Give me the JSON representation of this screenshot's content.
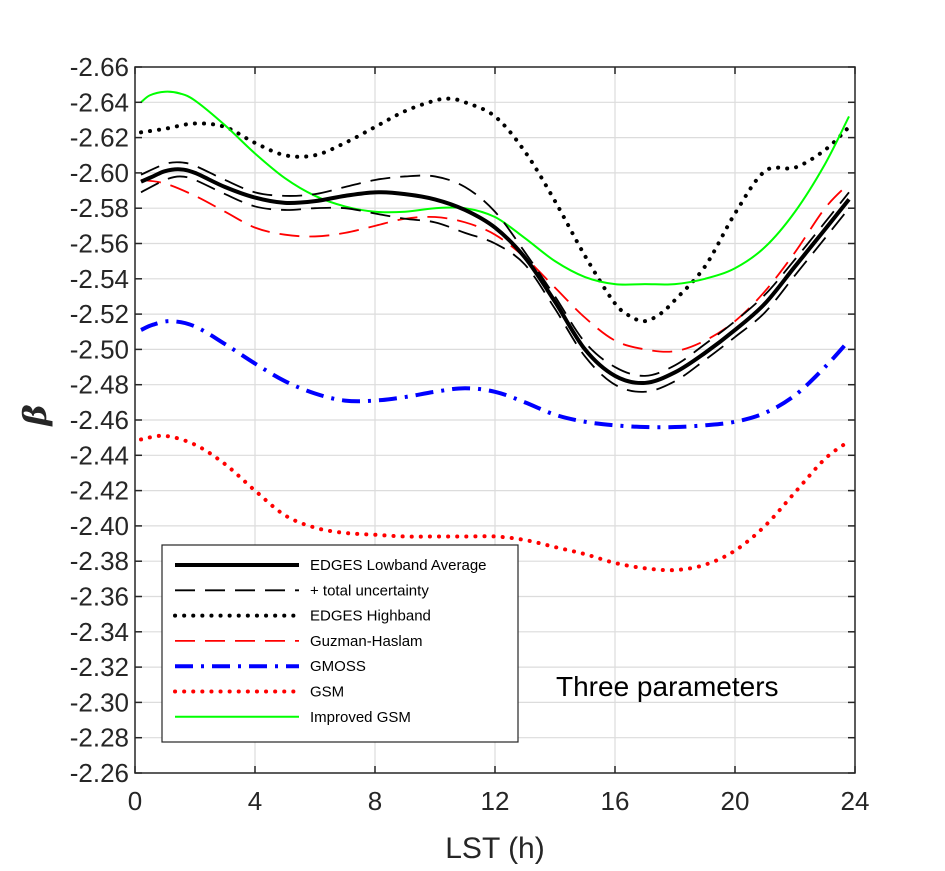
{
  "chart_data": {
    "type": "line",
    "xlabel": "LST (h)",
    "ylabel": "β",
    "xlim": [
      0,
      24
    ],
    "ylim": [
      -2.66,
      -2.26
    ],
    "y_reversed": true,
    "grid": true,
    "legend_position": "bottom-left",
    "xticks": [
      0,
      4,
      8,
      12,
      16,
      20,
      24
    ],
    "xtick_labels": [
      "0",
      "4",
      "8",
      "12",
      "16",
      "20",
      "24"
    ],
    "yticks": [
      -2.66,
      -2.64,
      -2.62,
      -2.6,
      -2.58,
      -2.56,
      -2.54,
      -2.52,
      -2.5,
      -2.48,
      -2.46,
      -2.44,
      -2.42,
      -2.4,
      -2.38,
      -2.36,
      -2.34,
      -2.32,
      -2.3,
      -2.28,
      -2.26
    ],
    "ytick_labels": [
      "-2.66",
      "-2.64",
      "-2.62",
      "-2.60",
      "-2.58",
      "-2.56",
      "-2.54",
      "-2.52",
      "-2.50",
      "-2.48",
      "-2.46",
      "-2.44",
      "-2.42",
      "-2.40",
      "-2.38",
      "-2.36",
      "-2.34",
      "-2.32",
      "-2.30",
      "-2.28",
      "-2.26"
    ],
    "annotation": "Three parameters",
    "series": [
      {
        "name": "EDGES Lowband Average",
        "color": "#000000",
        "style": "solid-thick",
        "points": [
          [
            0.2,
            -2.595
          ],
          [
            0.6,
            -2.598
          ],
          [
            1,
            -2.601
          ],
          [
            1.5,
            -2.602
          ],
          [
            2,
            -2.6
          ],
          [
            3,
            -2.592
          ],
          [
            4,
            -2.586
          ],
          [
            5,
            -2.583
          ],
          [
            6,
            -2.584
          ],
          [
            7,
            -2.587
          ],
          [
            8,
            -2.589
          ],
          [
            9,
            -2.588
          ],
          [
            10,
            -2.585
          ],
          [
            11,
            -2.579
          ],
          [
            12,
            -2.569
          ],
          [
            13,
            -2.552
          ],
          [
            14,
            -2.527
          ],
          [
            15,
            -2.5
          ],
          [
            16,
            -2.485
          ],
          [
            17,
            -2.481
          ],
          [
            18,
            -2.487
          ],
          [
            19,
            -2.498
          ],
          [
            20,
            -2.511
          ],
          [
            21,
            -2.526
          ],
          [
            22,
            -2.547
          ],
          [
            23,
            -2.568
          ],
          [
            23.8,
            -2.585
          ]
        ]
      },
      {
        "name": "+ total uncertainty",
        "color": "#000000",
        "style": "long-dash",
        "points": [
          [
            0.2,
            -2.599
          ],
          [
            1,
            -2.605
          ],
          [
            1.5,
            -2.606
          ],
          [
            2,
            -2.604
          ],
          [
            3,
            -2.596
          ],
          [
            4,
            -2.589
          ],
          [
            5,
            -2.587
          ],
          [
            6,
            -2.588
          ],
          [
            7,
            -2.592
          ],
          [
            8,
            -2.596
          ],
          [
            9,
            -2.598
          ],
          [
            10,
            -2.598
          ],
          [
            11,
            -2.592
          ],
          [
            12,
            -2.578
          ],
          [
            13,
            -2.555
          ],
          [
            14,
            -2.53
          ],
          [
            15,
            -2.504
          ],
          [
            16,
            -2.49
          ],
          [
            17,
            -2.485
          ],
          [
            18,
            -2.491
          ],
          [
            19,
            -2.503
          ],
          [
            20,
            -2.516
          ],
          [
            21,
            -2.531
          ],
          [
            22,
            -2.551
          ],
          [
            23,
            -2.572
          ],
          [
            23.8,
            -2.589
          ]
        ]
      },
      {
        "name": "",
        "color": "#000000",
        "style": "long-dash",
        "points": [
          [
            0.2,
            -2.589
          ],
          [
            1,
            -2.596
          ],
          [
            1.5,
            -2.598
          ],
          [
            2,
            -2.596
          ],
          [
            3,
            -2.588
          ],
          [
            4,
            -2.581
          ],
          [
            5,
            -2.579
          ],
          [
            6,
            -2.58
          ],
          [
            7,
            -2.58
          ],
          [
            8,
            -2.577
          ],
          [
            9,
            -2.574
          ],
          [
            10,
            -2.572
          ],
          [
            11,
            -2.566
          ],
          [
            12,
            -2.56
          ],
          [
            13,
            -2.548
          ],
          [
            14,
            -2.523
          ],
          [
            15,
            -2.496
          ],
          [
            16,
            -2.48
          ],
          [
            17,
            -2.476
          ],
          [
            18,
            -2.482
          ],
          [
            19,
            -2.494
          ],
          [
            20,
            -2.507
          ],
          [
            21,
            -2.521
          ],
          [
            22,
            -2.542
          ],
          [
            23,
            -2.563
          ],
          [
            23.8,
            -2.58
          ]
        ]
      },
      {
        "name": "EDGES Highband",
        "color": "#000000",
        "style": "dotted",
        "points": [
          [
            0.2,
            -2.623
          ],
          [
            1,
            -2.625
          ],
          [
            2,
            -2.628
          ],
          [
            3,
            -2.626
          ],
          [
            4,
            -2.617
          ],
          [
            5,
            -2.61
          ],
          [
            6,
            -2.61
          ],
          [
            7,
            -2.617
          ],
          [
            8,
            -2.626
          ],
          [
            9,
            -2.635
          ],
          [
            10,
            -2.641
          ],
          [
            10.5,
            -2.642
          ],
          [
            11,
            -2.64
          ],
          [
            12,
            -2.632
          ],
          [
            13,
            -2.612
          ],
          [
            14,
            -2.584
          ],
          [
            15,
            -2.553
          ],
          [
            16,
            -2.526
          ],
          [
            16.6,
            -2.518
          ],
          [
            17,
            -2.516
          ],
          [
            17.5,
            -2.52
          ],
          [
            18,
            -2.528
          ],
          [
            19,
            -2.547
          ],
          [
            20,
            -2.577
          ],
          [
            21,
            -2.601
          ],
          [
            22,
            -2.603
          ],
          [
            23,
            -2.613
          ],
          [
            23.8,
            -2.626
          ]
        ]
      },
      {
        "name": "Guzman-Haslam",
        "color": "#ff0000",
        "style": "long-dash",
        "points": [
          [
            0.2,
            -2.596
          ],
          [
            1,
            -2.594
          ],
          [
            2,
            -2.587
          ],
          [
            3,
            -2.578
          ],
          [
            4,
            -2.569
          ],
          [
            5,
            -2.565
          ],
          [
            6,
            -2.564
          ],
          [
            7,
            -2.566
          ],
          [
            8,
            -2.57
          ],
          [
            9,
            -2.574
          ],
          [
            10,
            -2.575
          ],
          [
            11,
            -2.572
          ],
          [
            12,
            -2.565
          ],
          [
            13,
            -2.552
          ],
          [
            14,
            -2.535
          ],
          [
            15,
            -2.518
          ],
          [
            16,
            -2.505
          ],
          [
            17,
            -2.5
          ],
          [
            18,
            -2.499
          ],
          [
            19,
            -2.505
          ],
          [
            20,
            -2.516
          ],
          [
            21,
            -2.533
          ],
          [
            22,
            -2.555
          ],
          [
            23,
            -2.58
          ],
          [
            23.8,
            -2.594
          ]
        ]
      },
      {
        "name": "GMOSS",
        "color": "#0000ff",
        "style": "dash-dot",
        "points": [
          [
            0.2,
            -2.511
          ],
          [
            0.6,
            -2.514
          ],
          [
            1.2,
            -2.516
          ],
          [
            2,
            -2.513
          ],
          [
            3,
            -2.503
          ],
          [
            4,
            -2.492
          ],
          [
            5,
            -2.482
          ],
          [
            6,
            -2.475
          ],
          [
            7,
            -2.471
          ],
          [
            8,
            -2.471
          ],
          [
            9,
            -2.473
          ],
          [
            10,
            -2.476
          ],
          [
            11,
            -2.478
          ],
          [
            12,
            -2.476
          ],
          [
            13,
            -2.47
          ],
          [
            14,
            -2.463
          ],
          [
            15,
            -2.459
          ],
          [
            16,
            -2.457
          ],
          [
            17,
            -2.456
          ],
          [
            18,
            -2.456
          ],
          [
            19,
            -2.457
          ],
          [
            20,
            -2.459
          ],
          [
            21,
            -2.464
          ],
          [
            22,
            -2.474
          ],
          [
            23,
            -2.49
          ],
          [
            23.8,
            -2.505
          ]
        ]
      },
      {
        "name": "GSM",
        "color": "#ff0000",
        "style": "dotted",
        "points": [
          [
            0.2,
            -2.449
          ],
          [
            1,
            -2.451
          ],
          [
            2,
            -2.446
          ],
          [
            3,
            -2.435
          ],
          [
            4,
            -2.42
          ],
          [
            5,
            -2.406
          ],
          [
            6,
            -2.399
          ],
          [
            7,
            -2.396
          ],
          [
            8,
            -2.395
          ],
          [
            9,
            -2.394
          ],
          [
            10,
            -2.394
          ],
          [
            11,
            -2.394
          ],
          [
            12,
            -2.394
          ],
          [
            13,
            -2.392
          ],
          [
            14,
            -2.388
          ],
          [
            15,
            -2.384
          ],
          [
            16,
            -2.379
          ],
          [
            17,
            -2.376
          ],
          [
            18,
            -2.375
          ],
          [
            19,
            -2.378
          ],
          [
            20,
            -2.386
          ],
          [
            21,
            -2.4
          ],
          [
            22,
            -2.419
          ],
          [
            23,
            -2.438
          ],
          [
            23.8,
            -2.448
          ]
        ]
      },
      {
        "name": "Improved GSM",
        "color": "#00ff00",
        "style": "solid",
        "points": [
          [
            0.2,
            -2.64
          ],
          [
            0.5,
            -2.644
          ],
          [
            1,
            -2.646
          ],
          [
            1.5,
            -2.645
          ],
          [
            2,
            -2.641
          ],
          [
            3,
            -2.627
          ],
          [
            4,
            -2.611
          ],
          [
            5,
            -2.597
          ],
          [
            6,
            -2.587
          ],
          [
            7,
            -2.581
          ],
          [
            8,
            -2.578
          ],
          [
            9,
            -2.578
          ],
          [
            10,
            -2.58
          ],
          [
            11,
            -2.58
          ],
          [
            12,
            -2.575
          ],
          [
            13,
            -2.563
          ],
          [
            14,
            -2.55
          ],
          [
            15,
            -2.541
          ],
          [
            16,
            -2.537
          ],
          [
            17,
            -2.537
          ],
          [
            18,
            -2.537
          ],
          [
            19,
            -2.54
          ],
          [
            20,
            -2.546
          ],
          [
            21,
            -2.558
          ],
          [
            22,
            -2.578
          ],
          [
            23,
            -2.605
          ],
          [
            23.8,
            -2.632
          ]
        ]
      }
    ],
    "legend": [
      {
        "label": "EDGES Lowband Average",
        "color": "#000000",
        "style": "solid-thick"
      },
      {
        "label": "+ total uncertainty",
        "color": "#000000",
        "style": "long-dash"
      },
      {
        "label": "EDGES Highband",
        "color": "#000000",
        "style": "dotted"
      },
      {
        "label": "Guzman-Haslam",
        "color": "#ff0000",
        "style": "long-dash"
      },
      {
        "label": "GMOSS",
        "color": "#0000ff",
        "style": "dash-dot"
      },
      {
        "label": "GSM",
        "color": "#ff0000",
        "style": "dotted"
      },
      {
        "label": "Improved GSM",
        "color": "#00ff00",
        "style": "solid"
      }
    ]
  }
}
